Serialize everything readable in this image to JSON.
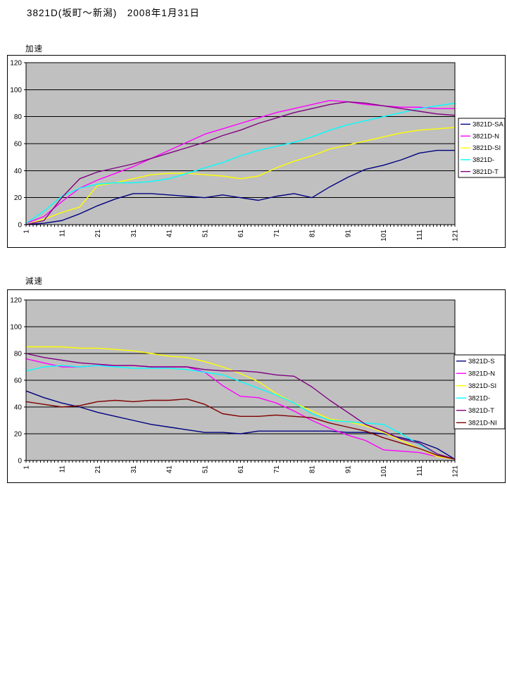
{
  "page": {
    "title": "3821D(坂町～新潟)　2008年1月31日"
  },
  "colors": {
    "plot_background": "#C0C0C0",
    "gridline": "#000000",
    "frame": "#000000",
    "legend_background": "#FFFFFF"
  },
  "chart_data": [
    {
      "type": "line",
      "title": "加速",
      "xlim": [
        1,
        121
      ],
      "ylim": [
        0,
        120
      ],
      "y_ticks": [
        0,
        20,
        40,
        60,
        80,
        100,
        120
      ],
      "x_tick_labels": [
        1,
        11,
        21,
        31,
        41,
        51,
        61,
        71,
        81,
        91,
        101,
        111,
        121
      ],
      "grid": true,
      "legend_position": "right",
      "plot_bg": "#C0C0C0",
      "x": [
        1,
        6,
        11,
        16,
        21,
        26,
        31,
        36,
        41,
        46,
        51,
        56,
        61,
        66,
        71,
        76,
        81,
        86,
        91,
        96,
        101,
        106,
        111,
        116,
        121
      ],
      "series": [
        {
          "name": "3821D-SA",
          "color": "#000080",
          "values": [
            0,
            1,
            3,
            8,
            14,
            19,
            23,
            23,
            22,
            21,
            20,
            22,
            20,
            18,
            21,
            23,
            20,
            28,
            35,
            41,
            44,
            48,
            53,
            55,
            55
          ]
        },
        {
          "name": "3821D-N",
          "color": "#FF00FF",
          "values": [
            1,
            6,
            17,
            27,
            33,
            38,
            43,
            49,
            55,
            61,
            67,
            71,
            75,
            79,
            83,
            86,
            89,
            92,
            91,
            89,
            88,
            87,
            87,
            86,
            86
          ]
        },
        {
          "name": "3821D-SI",
          "color": "#FFFF00",
          "values": [
            0,
            4,
            9,
            13,
            29,
            31,
            34,
            37,
            38,
            38,
            37,
            36,
            34,
            36,
            42,
            47,
            51,
            56,
            59,
            62,
            65,
            68,
            70,
            71,
            72
          ]
        },
        {
          "name": "3821D-",
          "color": "#00FFFF",
          "values": [
            1,
            10,
            21,
            27,
            30,
            31,
            31,
            32,
            34,
            38,
            42,
            46,
            51,
            55,
            58,
            61,
            65,
            70,
            74,
            77,
            80,
            83,
            86,
            88,
            90
          ]
        },
        {
          "name": "3821D-T",
          "color": "#800080",
          "values": [
            0,
            3,
            20,
            34,
            39,
            42,
            45,
            49,
            53,
            57,
            61,
            66,
            70,
            75,
            79,
            83,
            86,
            89,
            91,
            90,
            88,
            86,
            84,
            82,
            81
          ]
        }
      ]
    },
    {
      "type": "line",
      "title": "減速",
      "xlim": [
        1,
        121
      ],
      "ylim": [
        0,
        120
      ],
      "y_ticks": [
        0,
        20,
        40,
        60,
        80,
        100,
        120
      ],
      "x_tick_labels": [
        1,
        11,
        21,
        31,
        41,
        51,
        61,
        71,
        81,
        91,
        101,
        111,
        121
      ],
      "grid": true,
      "legend_position": "right",
      "plot_bg": "#C0C0C0",
      "x": [
        1,
        6,
        11,
        16,
        21,
        26,
        31,
        36,
        41,
        46,
        51,
        56,
        61,
        66,
        71,
        76,
        81,
        86,
        91,
        96,
        101,
        106,
        111,
        116,
        121
      ],
      "series": [
        {
          "name": "3821D-S",
          "color": "#000080",
          "values": [
            52,
            47,
            43,
            40,
            36,
            33,
            30,
            27,
            25,
            23,
            21,
            21,
            20,
            22,
            22,
            22,
            22,
            22,
            21,
            21,
            20,
            17,
            14,
            9,
            1
          ]
        },
        {
          "name": "3821D-N",
          "color": "#FF00FF",
          "values": [
            76,
            73,
            70,
            70,
            71,
            71,
            71,
            70,
            70,
            70,
            66,
            56,
            48,
            47,
            43,
            37,
            30,
            24,
            19,
            15,
            8,
            7,
            6,
            3,
            1
          ]
        },
        {
          "name": "3821D-SI",
          "color": "#FFFF00",
          "values": [
            85,
            85,
            85,
            84,
            84,
            83,
            82,
            80,
            78,
            77,
            74,
            70,
            65,
            59,
            50,
            43,
            37,
            31,
            29,
            26,
            21,
            15,
            9,
            3,
            1
          ]
        },
        {
          "name": "3821D-",
          "color": "#00FFFF",
          "values": [
            67,
            70,
            71,
            70,
            71,
            70,
            69,
            69,
            69,
            68,
            66,
            64,
            59,
            54,
            49,
            43,
            35,
            30,
            29,
            28,
            27,
            20,
            12,
            5,
            1
          ]
        },
        {
          "name": "3821D-T",
          "color": "#800080",
          "values": [
            80,
            77,
            75,
            73,
            72,
            71,
            71,
            70,
            70,
            70,
            68,
            67,
            67,
            66,
            64,
            63,
            55,
            45,
            36,
            27,
            22,
            16,
            13,
            5,
            1
          ]
        },
        {
          "name": "3821D-NI",
          "color": "#800000",
          "values": [
            44,
            42,
            40,
            41,
            44,
            45,
            44,
            45,
            45,
            46,
            42,
            35,
            33,
            33,
            34,
            33,
            32,
            28,
            25,
            22,
            17,
            13,
            9,
            4,
            1
          ]
        }
      ]
    }
  ]
}
